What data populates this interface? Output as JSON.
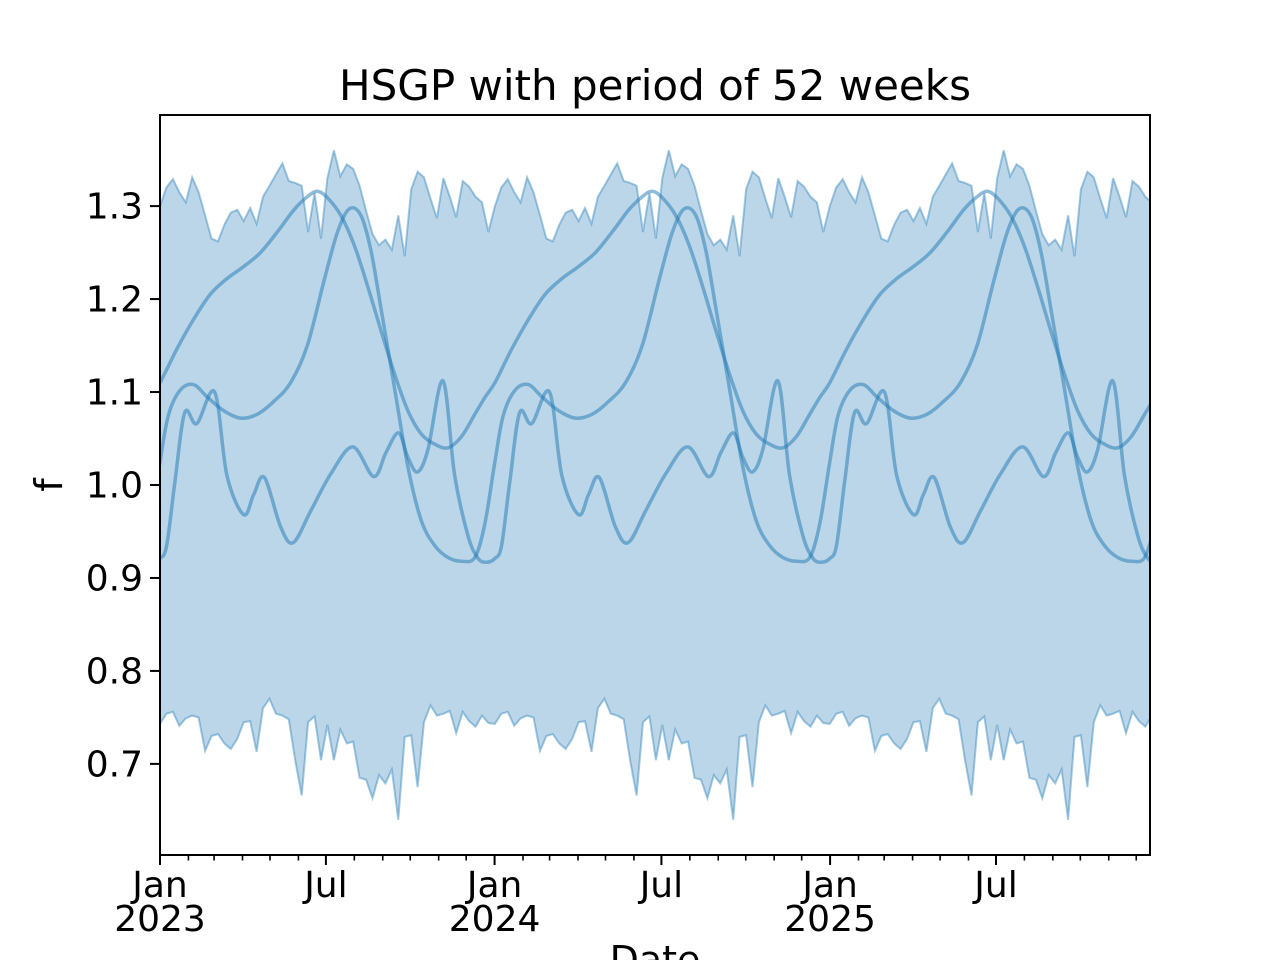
{
  "title": "HSGP with period of 52 weeks",
  "colors": {
    "base": "#1f77b4",
    "band_fill": "rgba(31,119,180,0.30)",
    "band_edge": "rgba(31,119,180,0.40)",
    "curve": "rgba(31,119,180,0.50)",
    "axis": "#000000"
  },
  "axes": {
    "x": {
      "label": "Date",
      "total_days": 1080,
      "major_ticks": [
        {
          "day": 0,
          "line1": "Jan",
          "line2": "2023"
        },
        {
          "day": 181,
          "line1": "Jul",
          "line2": ""
        },
        {
          "day": 365,
          "line1": "Jan",
          "line2": "2024"
        },
        {
          "day": 547,
          "line1": "Jul",
          "line2": ""
        },
        {
          "day": 731,
          "line1": "Jan",
          "line2": "2025"
        },
        {
          "day": 912,
          "line1": "Jul",
          "line2": ""
        }
      ],
      "minor_tick_days": [
        31,
        59,
        90,
        120,
        151,
        212,
        243,
        273,
        304,
        334,
        396,
        425,
        456,
        486,
        517,
        578,
        609,
        639,
        670,
        700,
        762,
        790,
        821,
        851,
        882,
        943,
        974,
        1004,
        1035,
        1065
      ]
    },
    "y": {
      "label": "f",
      "lim": [
        0.602,
        1.398
      ],
      "ticks": [
        {
          "value": 0.7,
          "label": "0.7"
        },
        {
          "value": 0.8,
          "label": "0.8"
        },
        {
          "value": 0.9,
          "label": "0.9"
        },
        {
          "value": 1.0,
          "label": "1.0"
        },
        {
          "value": 1.1,
          "label": "1.1"
        },
        {
          "value": 1.2,
          "label": "1.2"
        },
        {
          "value": 1.3,
          "label": "1.3"
        }
      ]
    }
  },
  "chart_data": {
    "type": "line",
    "title": "HSGP with period of 52 weeks",
    "xlabel": "Date",
    "ylabel": "f",
    "x_range": [
      "2023-01-01",
      "2025-12-17"
    ],
    "ylim": [
      0.602,
      1.398
    ],
    "period_weeks": 52,
    "periods_shown": 3,
    "grid": false,
    "legend": false,
    "series": [
      {
        "name": "gp-sample-broad",
        "period_points": [
          [
            0.0,
            1.11
          ],
          [
            0.05,
            1.146
          ],
          [
            0.1,
            1.178
          ],
          [
            0.15,
            1.205
          ],
          [
            0.2,
            1.222
          ],
          [
            0.25,
            1.235
          ],
          [
            0.3,
            1.25
          ],
          [
            0.35,
            1.272
          ],
          [
            0.4,
            1.296
          ],
          [
            0.44,
            1.31
          ],
          [
            0.47,
            1.316
          ],
          [
            0.5,
            1.309
          ],
          [
            0.54,
            1.29
          ],
          [
            0.58,
            1.258
          ],
          [
            0.62,
            1.214
          ],
          [
            0.66,
            1.166
          ],
          [
            0.7,
            1.12
          ],
          [
            0.74,
            1.08
          ],
          [
            0.78,
            1.055
          ],
          [
            0.82,
            1.044
          ],
          [
            0.86,
            1.04
          ],
          [
            0.9,
            1.052
          ],
          [
            0.94,
            1.076
          ],
          [
            0.97,
            1.094
          ]
        ]
      },
      {
        "name": "gp-sample-steep",
        "period_points": [
          [
            0.0,
            1.025
          ],
          [
            0.025,
            1.075
          ],
          [
            0.06,
            1.102
          ],
          [
            0.1,
            1.108
          ],
          [
            0.14,
            1.095
          ],
          [
            0.19,
            1.08
          ],
          [
            0.24,
            1.072
          ],
          [
            0.29,
            1.076
          ],
          [
            0.34,
            1.09
          ],
          [
            0.39,
            1.11
          ],
          [
            0.44,
            1.15
          ],
          [
            0.49,
            1.22
          ],
          [
            0.53,
            1.272
          ],
          [
            0.565,
            1.297
          ],
          [
            0.6,
            1.29
          ],
          [
            0.63,
            1.252
          ],
          [
            0.66,
            1.19
          ],
          [
            0.7,
            1.105
          ],
          [
            0.74,
            1.02
          ],
          [
            0.78,
            0.962
          ],
          [
            0.82,
            0.935
          ],
          [
            0.86,
            0.922
          ],
          [
            0.9,
            0.918
          ],
          [
            0.94,
            0.922
          ],
          [
            0.97,
            0.958
          ]
        ]
      },
      {
        "name": "gp-sample-wiggly",
        "period_points": [
          [
            0.0,
            0.921
          ],
          [
            0.02,
            0.935
          ],
          [
            0.045,
            1.005
          ],
          [
            0.074,
            1.078
          ],
          [
            0.11,
            1.066
          ],
          [
            0.163,
            1.1
          ],
          [
            0.2,
            1.01
          ],
          [
            0.25,
            0.968
          ],
          [
            0.28,
            0.99
          ],
          [
            0.312,
            1.008
          ],
          [
            0.36,
            0.955
          ],
          [
            0.398,
            0.938
          ],
          [
            0.45,
            0.972
          ],
          [
            0.51,
            1.012
          ],
          [
            0.576,
            1.041
          ],
          [
            0.638,
            1.009
          ],
          [
            0.675,
            1.035
          ],
          [
            0.712,
            1.056
          ],
          [
            0.74,
            1.03
          ],
          [
            0.769,
            1.014
          ],
          [
            0.8,
            1.038
          ],
          [
            0.845,
            1.112
          ],
          [
            0.88,
            1.01
          ],
          [
            0.92,
            0.945
          ],
          [
            0.95,
            0.921
          ],
          [
            0.975,
            0.917
          ]
        ]
      }
    ],
    "band": {
      "name": "hdi-band",
      "weekly_upper": [
        1.3,
        1.32,
        1.329,
        1.315,
        1.304,
        1.331,
        1.315,
        1.29,
        1.265,
        1.262,
        1.28,
        1.293,
        1.296,
        1.284,
        1.298,
        1.281,
        1.31,
        1.322,
        1.334,
        1.346,
        1.327,
        1.325,
        1.322,
        1.272,
        1.314,
        1.265,
        1.33,
        1.36,
        1.332,
        1.345,
        1.34,
        1.322,
        1.295,
        1.27,
        1.258,
        1.264,
        1.253,
        1.29,
        1.246,
        1.318,
        1.337,
        1.331,
        1.308,
        1.287,
        1.33,
        1.31,
        1.288,
        1.327,
        1.321,
        1.31,
        1.304,
        1.272
      ],
      "weekly_lower": [
        0.743,
        0.754,
        0.756,
        0.741,
        0.749,
        0.752,
        0.75,
        0.714,
        0.73,
        0.732,
        0.722,
        0.716,
        0.727,
        0.745,
        0.746,
        0.713,
        0.76,
        0.77,
        0.754,
        0.752,
        0.748,
        0.704,
        0.666,
        0.745,
        0.751,
        0.704,
        0.742,
        0.704,
        0.737,
        0.722,
        0.724,
        0.685,
        0.683,
        0.663,
        0.688,
        0.679,
        0.694,
        0.64,
        0.729,
        0.731,
        0.675,
        0.745,
        0.763,
        0.752,
        0.754,
        0.757,
        0.733,
        0.756,
        0.746,
        0.74,
        0.752,
        0.744
      ]
    }
  }
}
